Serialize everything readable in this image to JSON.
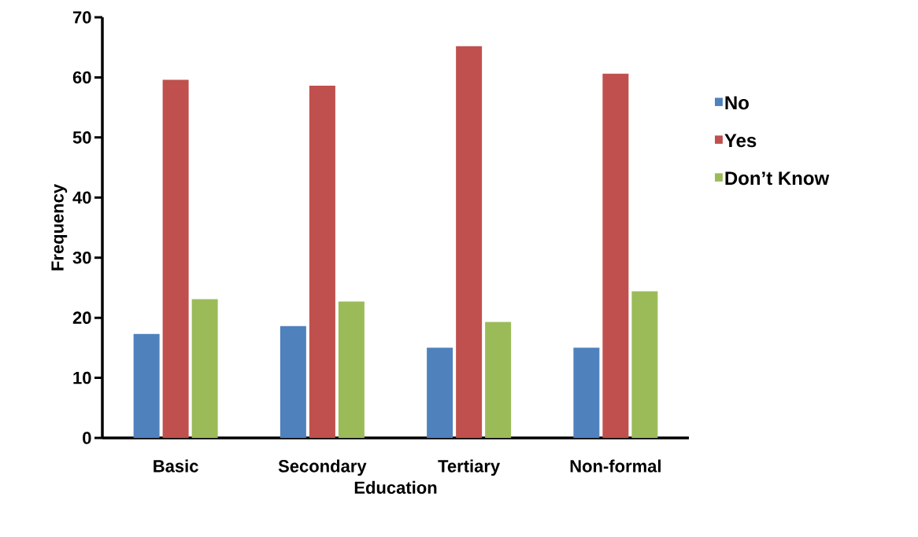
{
  "chart_data": {
    "type": "bar",
    "xlabel": "Education",
    "ylabel": "Frequency",
    "categories": [
      "Basic",
      "Secondary",
      "Tertiary",
      "Non-formal"
    ],
    "series": [
      {
        "name": "No",
        "color": "#4f81bd",
        "values": [
          17.3,
          18.6,
          15.0,
          15.0
        ]
      },
      {
        "name": "Yes",
        "color": "#c0504d",
        "values": [
          59.6,
          58.6,
          65.2,
          60.6
        ]
      },
      {
        "name": "Don’t Know",
        "color": "#9bbb59",
        "values": [
          23.1,
          22.7,
          19.3,
          24.4
        ]
      }
    ],
    "ylim": [
      0,
      70
    ],
    "yticks": [
      0,
      10,
      20,
      30,
      40,
      50,
      60,
      70
    ],
    "grid": false,
    "legend": "right"
  }
}
